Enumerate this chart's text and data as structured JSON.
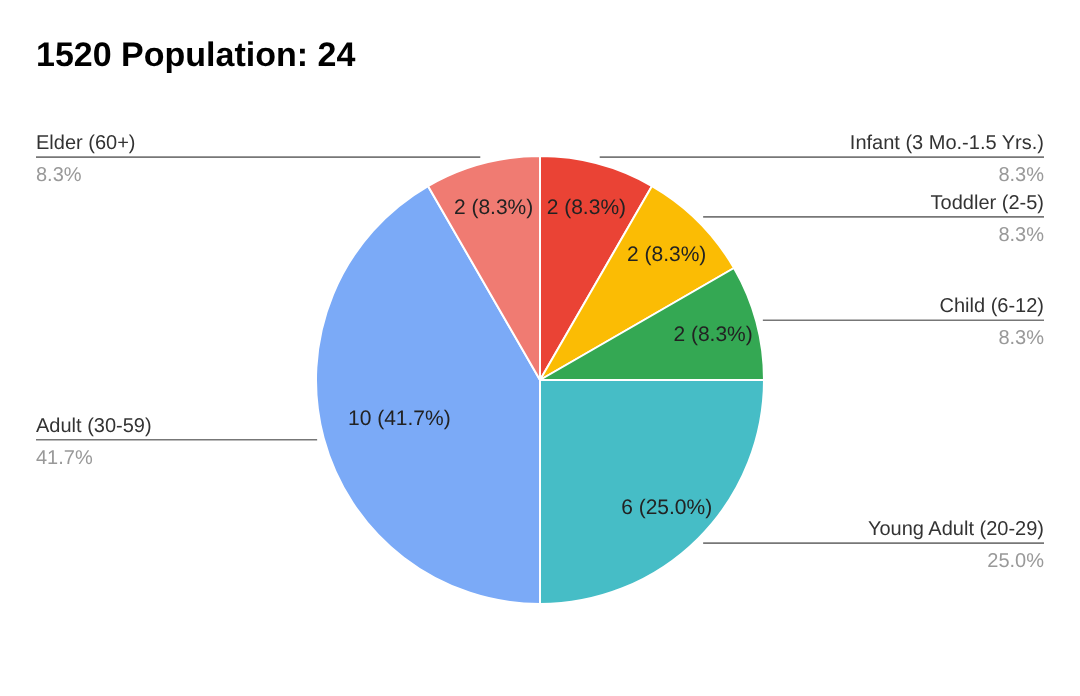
{
  "chart_data": {
    "type": "pie",
    "title": "1520 Population: 24",
    "categories": [
      "Infant (3 Mo.-1.5 Yrs.)",
      "Toddler (2-5)",
      "Child (6-12)",
      "Young Adult (20-29)",
      "Adult (30-59)",
      "Elder (60+)"
    ],
    "values": [
      2,
      2,
      2,
      6,
      10,
      2
    ],
    "colors": [
      "#ea4335",
      "#fbbc04",
      "#34a853",
      "#46bdc6",
      "#7baaf7",
      "#f07b72"
    ],
    "value_labels": [
      "2 (8.3%)",
      "2 (8.3%)",
      "2 (8.3%)",
      "6 (25.0%)",
      "10 (41.7%)",
      "2 (8.3%)"
    ],
    "annotations": [
      "8.3%",
      "8.3%",
      "8.3%",
      "25.0%",
      "41.7%",
      "8.3%"
    ]
  }
}
